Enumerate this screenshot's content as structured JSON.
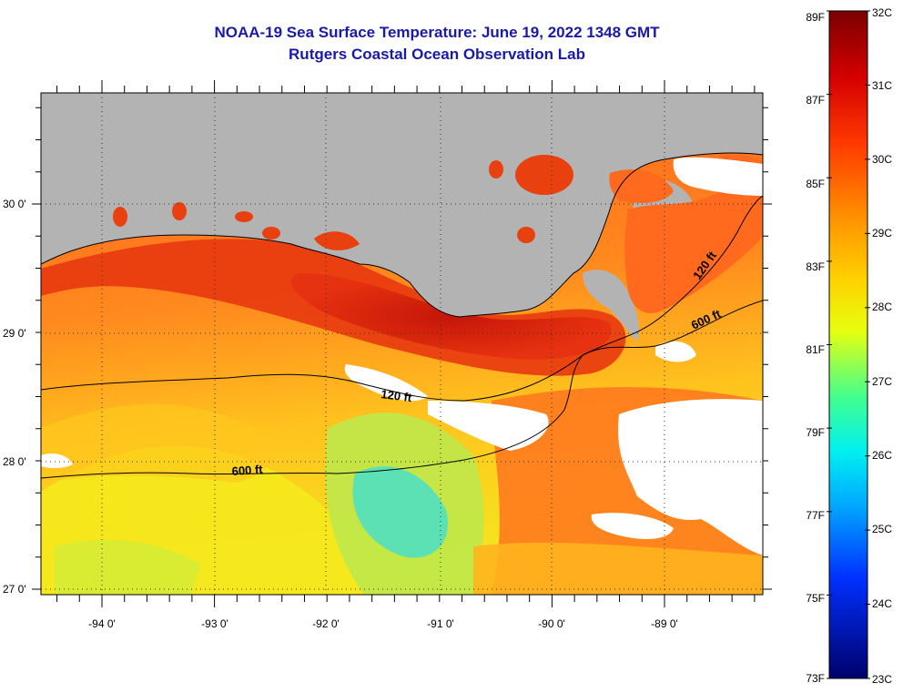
{
  "header": {
    "title": "NOAA-19 Sea Surface Temperature:  June 19, 2022 1348 GMT",
    "subtitle": "Rutgers Coastal Ocean Observation Lab"
  },
  "map": {
    "lon_labels": [
      "-94 0'",
      "-93 0'",
      "-92 0'",
      "-91 0'",
      "-90 0'",
      "-89 0'"
    ],
    "lat_labels": [
      "30 0'",
      "29 0'",
      "28 0'",
      "27 0'"
    ],
    "contour_labels": [
      "120 ft",
      "600 ft",
      "120 ft",
      "600 ft"
    ],
    "colors": {
      "land": "#b3b3b3",
      "cloud": "#ffffff",
      "warm_shelf": "#ff5a1e",
      "hot_nearshore": "#d21c0a",
      "cool_offshore": "#f2f01e",
      "coolest_patch": "#3fe6c8"
    }
  },
  "colorbar": {
    "f_labels": [
      "89F",
      "87F",
      "85F",
      "83F",
      "81F",
      "79F",
      "77F",
      "75F",
      "73F"
    ],
    "c_labels": [
      "32C",
      "31C",
      "30C",
      "29C",
      "28C",
      "27C",
      "26C",
      "25C",
      "24C",
      "23C"
    ],
    "min_c": 23,
    "max_c": 32
  }
}
